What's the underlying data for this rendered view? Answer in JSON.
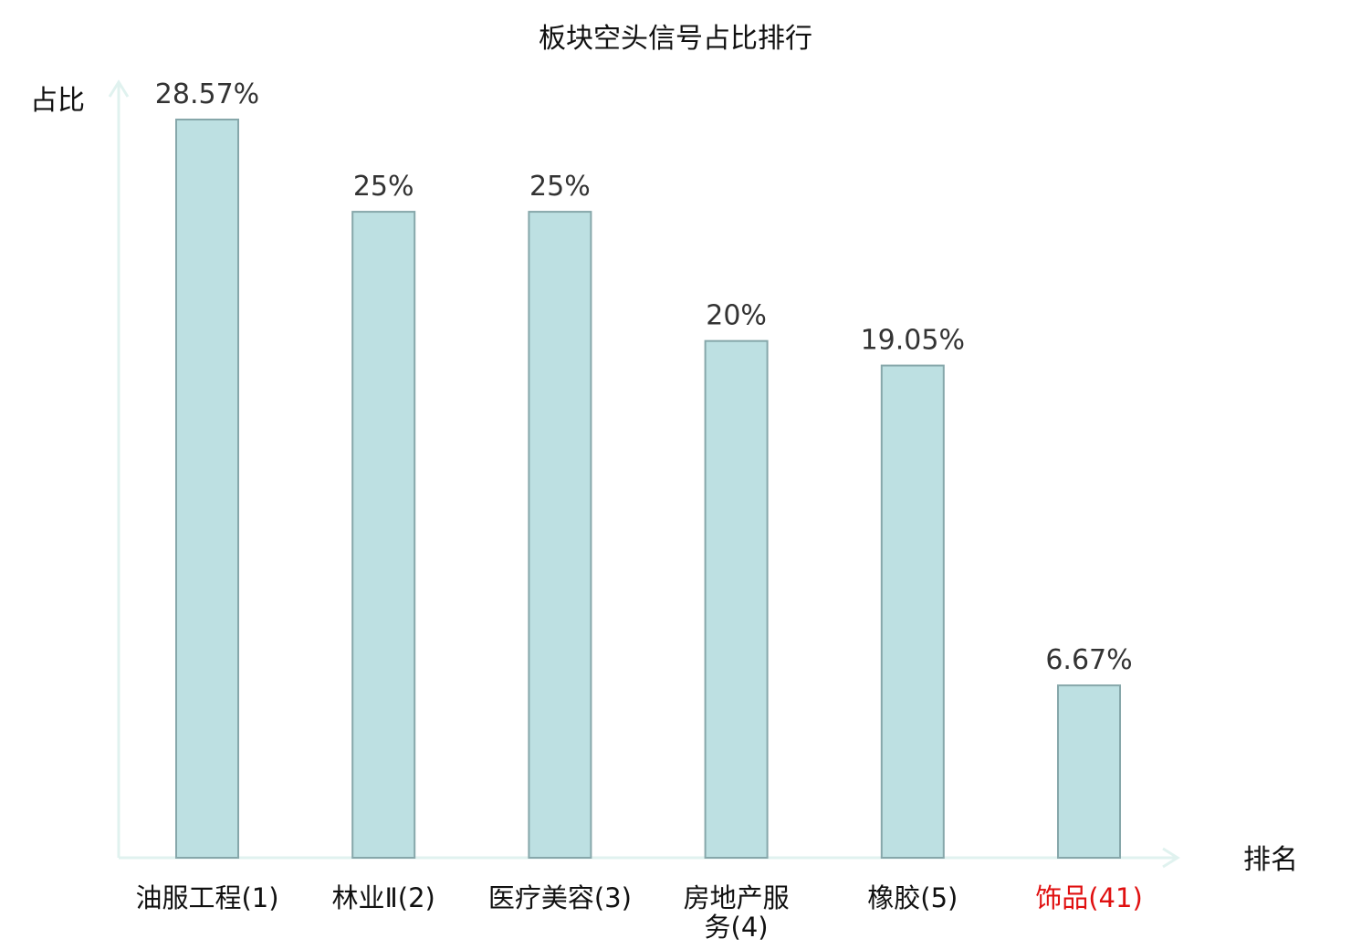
{
  "chart_data": {
    "type": "bar",
    "title": "板块空头信号占比排行",
    "ylabel": "占比",
    "xlabel": "排名",
    "categories": [
      "油服工程(1)",
      "林业Ⅱ(2)",
      "医疗美容(3)",
      "房地产服务(4)",
      "橡胶(5)",
      "饰品(41)"
    ],
    "values": [
      28.57,
      25,
      25,
      20,
      19.05,
      6.67
    ],
    "value_labels": [
      "28.57%",
      "25%",
      "25%",
      "20%",
      "19.05%",
      "6.67%"
    ],
    "category_lines": [
      [
        "油服工程(1)"
      ],
      [
        "林业Ⅱ(2)"
      ],
      [
        "医疗美容(3)"
      ],
      [
        "房地产服",
        "务(4)"
      ],
      [
        "橡胶(5)"
      ],
      [
        "饰品(41)"
      ]
    ],
    "highlight_index": 5,
    "ylim": [
      0,
      30
    ],
    "grid": false,
    "colors": {
      "bar_fill": "#bde0e2",
      "bar_stroke": "#86a7aa",
      "axis": "#e0f2ef",
      "highlight_text": "#e01010",
      "label_text": "#111111",
      "value_text": "#333333"
    }
  }
}
